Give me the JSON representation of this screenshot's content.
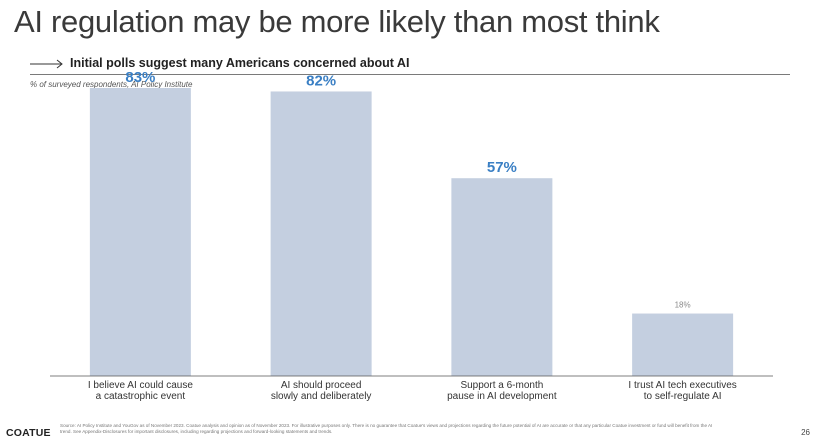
{
  "title": "AI regulation may be more likely than most think",
  "subtitle": "Initial polls suggest many Americans concerned about AI",
  "note": "% of surveyed respondents, AI Policy Institute",
  "footer": {
    "logo": "COATUE",
    "source_line1": "Source: AI Policy Institute and YouGov as of November 2023. Coatue analysis and opinion as of November 2023. For illustrative purposes only. There is no guarantee that Coatue's views and projections regarding the future potential of AI are accurate or that any particular Coatue investment or fund will benefit from the AI",
    "source_line2": "trend. See Appendix-Disclosures for important disclosures, including regarding projections and forward-looking statements and trends.",
    "page": "26"
  },
  "colors": {
    "bar": "#c4cfe0",
    "highlight": "#3a7fc4",
    "muted_label": "#8a8a8a",
    "axis": "#555555"
  },
  "chart_data": {
    "type": "bar",
    "title": "Initial polls suggest many Americans concerned about AI",
    "xlabel": "",
    "ylabel": "% of surveyed respondents",
    "ylim": [
      0,
      100
    ],
    "grid": false,
    "categories": [
      [
        "I believe AI could cause",
        "a catastrophic event"
      ],
      [
        "AI should proceed",
        "slowly and deliberately"
      ],
      [
        "Support a 6-month",
        "pause in AI development"
      ],
      [
        "I trust AI tech executives",
        "to self-regulate AI"
      ]
    ],
    "values": [
      83,
      82,
      57,
      18
    ],
    "labels": [
      "83%",
      "82%",
      "57%",
      "18%"
    ],
    "highlighted": [
      true,
      true,
      true,
      false
    ]
  }
}
